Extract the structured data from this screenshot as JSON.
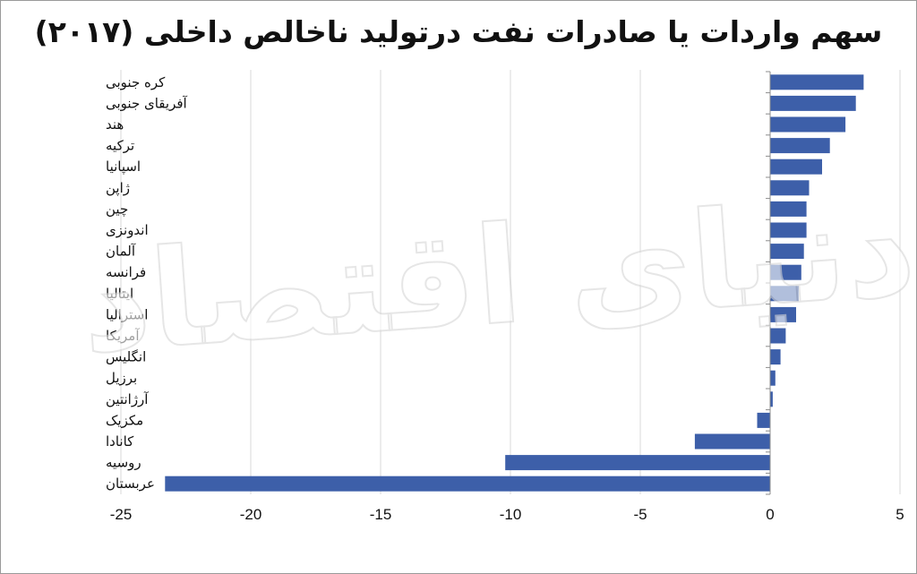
{
  "chart_data": {
    "type": "bar",
    "orientation": "horizontal",
    "title": "سهم واردات یا صادرات نفت درتولید ناخالص داخلی (۲۰۱۷)",
    "categories": [
      "کره جنوبی",
      "آفریقای جنوبی",
      "هند",
      "ترکیه",
      "اسپانیا",
      "ژاپن",
      "چین",
      "اندونزی",
      "آلمان",
      "فرانسه",
      "ایتالیا",
      "استرالیا",
      "آمریکا",
      "انگلیس",
      "برزیل",
      "آرژانتین",
      "مکزیک",
      "کانادا",
      "روسیه",
      "عربستان"
    ],
    "values": [
      3.6,
      3.3,
      2.9,
      2.3,
      2.0,
      1.5,
      1.4,
      1.4,
      1.3,
      1.2,
      1.1,
      1.0,
      0.6,
      0.4,
      0.2,
      0.1,
      -0.5,
      -2.9,
      -10.2,
      -23.3
    ],
    "xlim": [
      -25,
      5
    ],
    "xticks": [
      -25,
      -20,
      -15,
      -10,
      -5,
      0,
      5
    ],
    "xlabel": "",
    "ylabel": "",
    "grid": true,
    "bar_color": "#3d5fa9",
    "gridline_color": "#d9d9d9"
  },
  "watermark": "دنیای اقتصاد"
}
